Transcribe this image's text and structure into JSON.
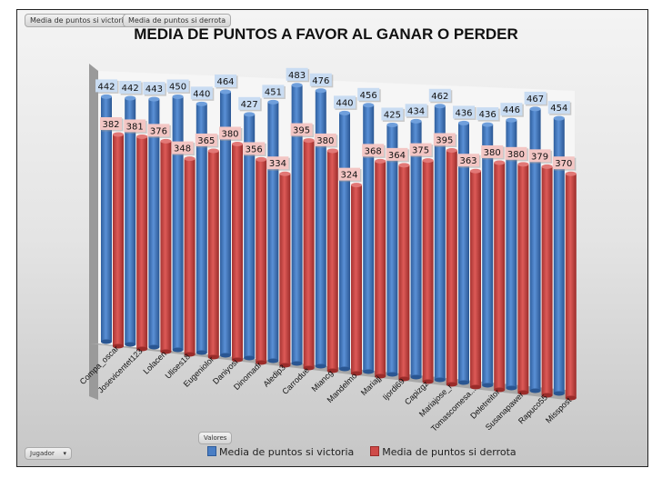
{
  "field_buttons": {
    "series": [
      "Media de puntos si victoria",
      "Media de puntos si derrota"
    ],
    "values": "Valores",
    "axis": "Jugador"
  },
  "colors": {
    "victoria": "#4a7ec4",
    "derrota": "#cf4a48",
    "label_victoria": "#c9dcf2",
    "label_derrota": "#f3c6c4"
  },
  "chart_data": {
    "type": "bar",
    "title": "MEDIA DE PUNTOS A FAVOR AL GANAR O PERDER",
    "xlabel": "",
    "ylabel": "",
    "legend": "bottom",
    "categories": [
      "Compa_oscar",
      "Josevicentet123",
      "Lolacen",
      "Ulises18",
      "Eugeniolor",
      "Daniyosi",
      "Dinomadr",
      "Aledip3",
      "Carrodue",
      "Miancg",
      "Mandelmo",
      "Mariajj",
      "Ijordi69",
      "Capizgz",
      "Mariajose_r",
      "Tomascomesa...",
      "Deletreitor",
      "Susanapawer",
      "Rapuco55",
      "Misspost"
    ],
    "series": [
      {
        "name": "Media de puntos si victoria",
        "values": [
          442,
          442,
          443,
          450,
          440,
          464,
          427,
          451,
          483,
          476,
          440,
          456,
          425,
          434,
          462,
          436,
          436,
          446,
          467,
          454
        ]
      },
      {
        "name": "Media de puntos si derrota",
        "values": [
          382,
          381,
          376,
          348,
          365,
          380,
          356,
          334,
          395,
          380,
          324,
          368,
          364,
          375,
          395,
          363,
          380,
          380,
          379,
          370
        ]
      }
    ]
  }
}
